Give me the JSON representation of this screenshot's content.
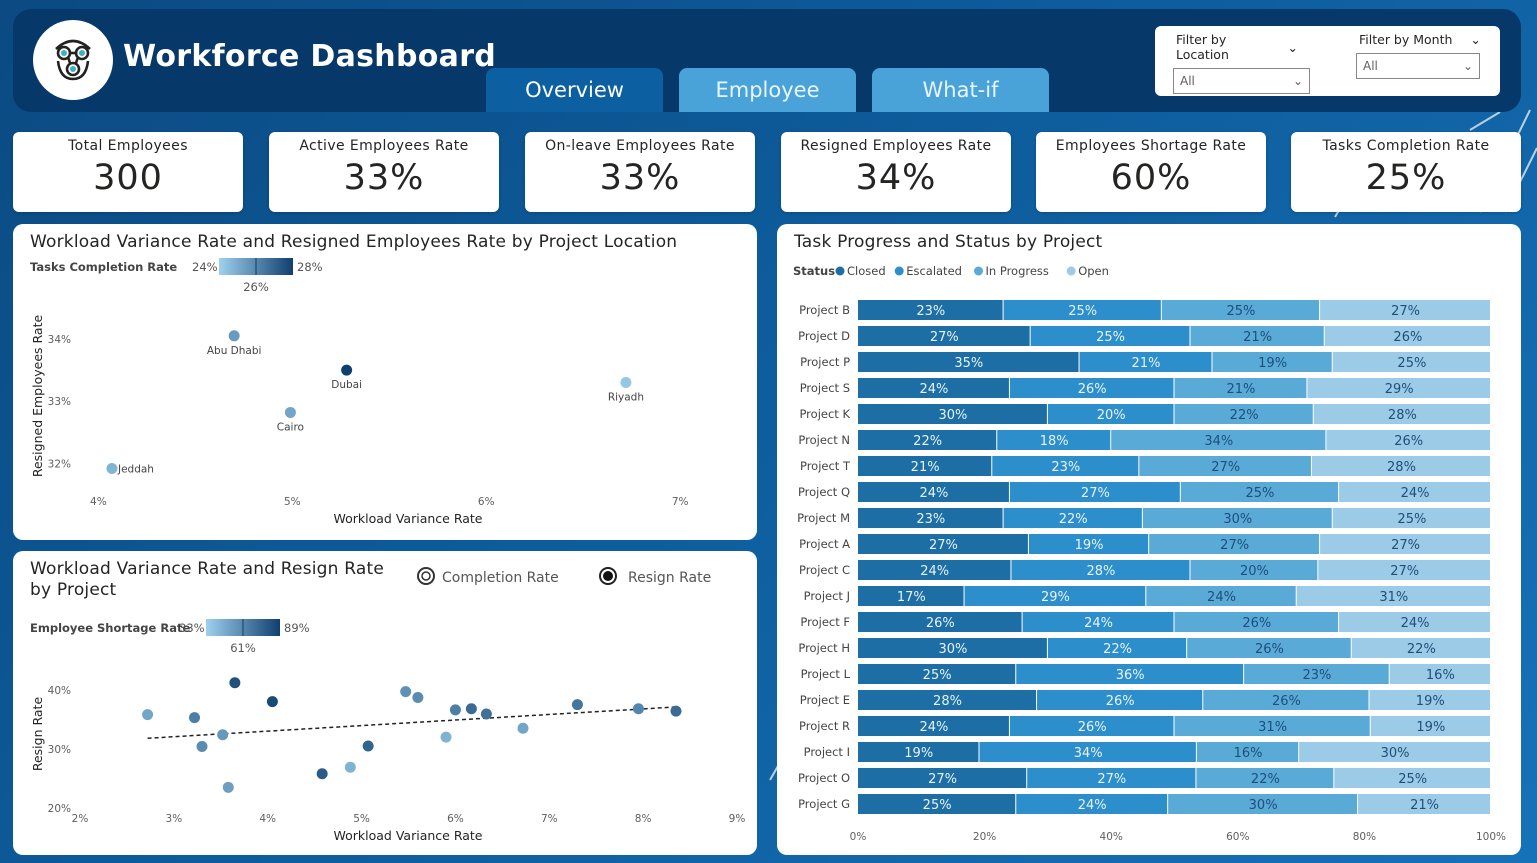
{
  "app": {
    "title": "Workforce Dashboard"
  },
  "tabs": [
    {
      "label": "Overview",
      "active": true
    },
    {
      "label": "Employee",
      "active": false
    },
    {
      "label": "What-if",
      "active": false
    }
  ],
  "filters": [
    {
      "label": "Filter by Location",
      "value": "All"
    },
    {
      "label": "Filter by Month",
      "value": "All"
    }
  ],
  "kpis": [
    {
      "label": "Total Employees",
      "value": "300"
    },
    {
      "label": "Active Employees Rate",
      "value": "33%"
    },
    {
      "label": "On-leave Employees Rate",
      "value": "33%"
    },
    {
      "label": "Resigned Employees Rate",
      "value": "34%"
    },
    {
      "label": "Employees Shortage Rate",
      "value": "60%"
    },
    {
      "label": "Tasks Completion Rate",
      "value": "25%"
    }
  ],
  "colors": {
    "dark": "#063869",
    "c1": "#1c6ea4",
    "c2": "#2c8fcb",
    "c3": "#5aaad8",
    "c4": "#9ccbe8",
    "grad_low": "#9fd1ef",
    "grad_high": "#0f3f6e"
  },
  "chart_data": [
    {
      "type": "scatter",
      "title": "Workload Variance Rate and Resigned Employees Rate by Project Location",
      "xlabel": "Workload Variance Rate",
      "ylabel": "Resigned Employees Rate",
      "xlim": [
        3.9,
        7.2
      ],
      "ylim": [
        31.8,
        34.4
      ],
      "xticks": [
        "4%",
        "5%",
        "6%",
        "7%"
      ],
      "yticks": [
        "32%",
        "33%",
        "34%"
      ],
      "color_legend": {
        "label": "Tasks Completion Rate",
        "min": "24%",
        "mid": "26%",
        "max": "28%"
      },
      "points": [
        {
          "label": "Abu Dhabi",
          "x": 4.7,
          "y": 34.05,
          "color_value": 25.5
        },
        {
          "label": "Dubai",
          "x": 5.28,
          "y": 33.5,
          "color_value": 28
        },
        {
          "label": "Riyadh",
          "x": 6.72,
          "y": 33.3,
          "color_value": 24.3
        },
        {
          "label": "Cairo",
          "x": 4.99,
          "y": 32.82,
          "color_value": 25.2
        },
        {
          "label": "Jeddah",
          "x": 4.07,
          "y": 31.92,
          "color_value": 24.8
        }
      ]
    },
    {
      "type": "scatter",
      "title": "Workload Variance Rate and Resign Rate by Project",
      "toggle": [
        {
          "label": "Completion Rate",
          "selected": false
        },
        {
          "label": "Resign Rate",
          "selected": true
        }
      ],
      "xlabel": "Workload Variance Rate",
      "ylabel": "Resign Rate",
      "xlim": [
        2,
        9
      ],
      "ylim": [
        20,
        42
      ],
      "xticks": [
        "2%",
        "3%",
        "4%",
        "5%",
        "6%",
        "7%",
        "8%",
        "9%"
      ],
      "yticks": [
        "20%",
        "30%",
        "40%"
      ],
      "color_legend": {
        "label": "Employee Shortage Rate",
        "min": "33%",
        "mid": "61%",
        "max": "89%"
      },
      "trendline": [
        [
          2.72,
          31.8
        ],
        [
          8.35,
          37.1
        ]
      ],
      "points": [
        {
          "x": 2.72,
          "y": 35.8,
          "color_value": 50
        },
        {
          "x": 3.22,
          "y": 35.3,
          "color_value": 65
        },
        {
          "x": 3.3,
          "y": 30.4,
          "color_value": 60
        },
        {
          "x": 3.52,
          "y": 32.4,
          "color_value": 55
        },
        {
          "x": 3.58,
          "y": 23.5,
          "color_value": 52
        },
        {
          "x": 3.65,
          "y": 41.2,
          "color_value": 82
        },
        {
          "x": 4.58,
          "y": 25.8,
          "color_value": 78
        },
        {
          "x": 4.05,
          "y": 38.0,
          "color_value": 85
        },
        {
          "x": 4.88,
          "y": 26.9,
          "color_value": 45
        },
        {
          "x": 5.07,
          "y": 30.5,
          "color_value": 75
        },
        {
          "x": 5.47,
          "y": 39.7,
          "color_value": 58
        },
        {
          "x": 5.6,
          "y": 38.7,
          "color_value": 60
        },
        {
          "x": 5.9,
          "y": 32.0,
          "color_value": 45
        },
        {
          "x": 6.0,
          "y": 36.6,
          "color_value": 65
        },
        {
          "x": 6.17,
          "y": 36.8,
          "color_value": 72
        },
        {
          "x": 6.33,
          "y": 35.9,
          "color_value": 70
        },
        {
          "x": 6.72,
          "y": 33.5,
          "color_value": 50
        },
        {
          "x": 7.3,
          "y": 37.5,
          "color_value": 68
        },
        {
          "x": 7.95,
          "y": 36.8,
          "color_value": 62
        },
        {
          "x": 8.35,
          "y": 36.4,
          "color_value": 72
        }
      ]
    },
    {
      "type": "bar",
      "stacked": "100%",
      "orientation": "horizontal",
      "title": "Task Progress and Status by Project",
      "legend_title": "Status",
      "xticks": [
        "0%",
        "20%",
        "40%",
        "60%",
        "80%",
        "100%"
      ],
      "categories": [
        "Project B",
        "Project D",
        "Project P",
        "Project S",
        "Project K",
        "Project N",
        "Project T",
        "Project Q",
        "Project M",
        "Project A",
        "Project C",
        "Project J",
        "Project F",
        "Project H",
        "Project L",
        "Project E",
        "Project R",
        "Project I",
        "Project O",
        "Project G"
      ],
      "series": [
        {
          "name": "Closed",
          "values": [
            23,
            27,
            35,
            24,
            30,
            22,
            21,
            24,
            23,
            27,
            24,
            17,
            26,
            30,
            25,
            28,
            24,
            19,
            27,
            25
          ]
        },
        {
          "name": "Escalated",
          "values": [
            25,
            25,
            21,
            26,
            20,
            18,
            23,
            27,
            22,
            19,
            28,
            29,
            24,
            22,
            36,
            26,
            26,
            34,
            27,
            24
          ]
        },
        {
          "name": "In Progress",
          "values": [
            25,
            21,
            19,
            21,
            22,
            34,
            27,
            25,
            30,
            27,
            20,
            24,
            26,
            26,
            23,
            26,
            31,
            16,
            22,
            30
          ]
        },
        {
          "name": "Open",
          "values": [
            27,
            26,
            25,
            29,
            28,
            26,
            28,
            24,
            25,
            27,
            27,
            31,
            24,
            22,
            16,
            19,
            19,
            30,
            25,
            21
          ]
        }
      ]
    }
  ]
}
